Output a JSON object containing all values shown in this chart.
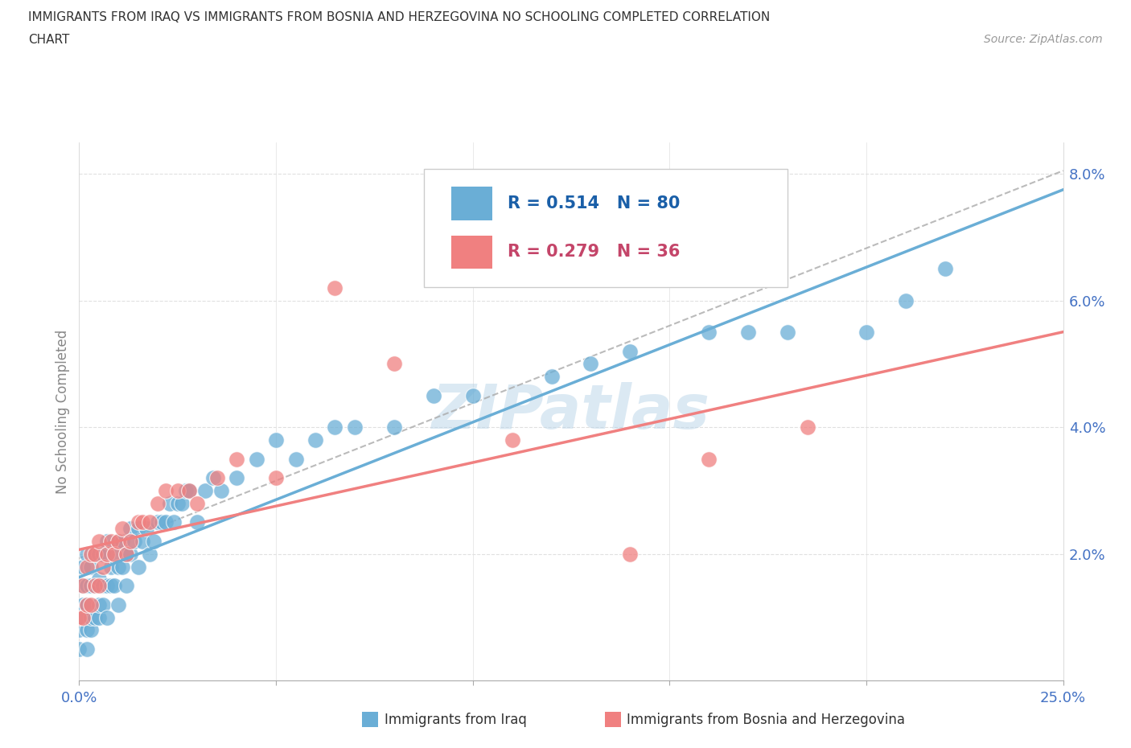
{
  "title_line1": "IMMIGRANTS FROM IRAQ VS IMMIGRANTS FROM BOSNIA AND HERZEGOVINA NO SCHOOLING COMPLETED CORRELATION",
  "title_line2": "CHART",
  "source_text": "Source: ZipAtlas.com",
  "ylabel": "No Schooling Completed",
  "xlim": [
    0.0,
    0.25
  ],
  "ylim": [
    0.0,
    0.085
  ],
  "xticks": [
    0.0,
    0.05,
    0.1,
    0.15,
    0.2,
    0.25
  ],
  "yticks": [
    0.0,
    0.02,
    0.04,
    0.06,
    0.08
  ],
  "xticklabels": [
    "0.0%",
    "",
    "",
    "",
    "",
    "25.0%"
  ],
  "yticklabels": [
    "",
    "2.0%",
    "4.0%",
    "6.0%",
    "8.0%"
  ],
  "color_iraq": "#6AAED6",
  "color_bosnia": "#F08080",
  "R_iraq": 0.514,
  "N_iraq": 80,
  "R_bosnia": 0.279,
  "N_bosnia": 36,
  "watermark": "ZIPatlas",
  "background_color": "#ffffff",
  "grid_color": "#e0e0e0",
  "iraq_x": [
    0.0,
    0.0,
    0.001,
    0.001,
    0.001,
    0.001,
    0.002,
    0.002,
    0.002,
    0.002,
    0.002,
    0.003,
    0.003,
    0.003,
    0.003,
    0.004,
    0.004,
    0.004,
    0.005,
    0.005,
    0.005,
    0.005,
    0.006,
    0.006,
    0.006,
    0.007,
    0.007,
    0.007,
    0.008,
    0.008,
    0.009,
    0.009,
    0.01,
    0.01,
    0.01,
    0.011,
    0.011,
    0.012,
    0.012,
    0.013,
    0.013,
    0.014,
    0.015,
    0.015,
    0.016,
    0.017,
    0.018,
    0.019,
    0.02,
    0.021,
    0.022,
    0.023,
    0.024,
    0.025,
    0.026,
    0.027,
    0.028,
    0.03,
    0.032,
    0.034,
    0.036,
    0.04,
    0.045,
    0.05,
    0.055,
    0.06,
    0.065,
    0.07,
    0.08,
    0.09,
    0.1,
    0.12,
    0.13,
    0.14,
    0.16,
    0.17,
    0.18,
    0.2,
    0.21,
    0.22
  ],
  "iraq_y": [
    0.005,
    0.008,
    0.01,
    0.012,
    0.015,
    0.018,
    0.005,
    0.008,
    0.012,
    0.015,
    0.02,
    0.008,
    0.01,
    0.015,
    0.018,
    0.01,
    0.015,
    0.02,
    0.01,
    0.012,
    0.016,
    0.02,
    0.012,
    0.015,
    0.02,
    0.01,
    0.015,
    0.022,
    0.015,
    0.018,
    0.015,
    0.02,
    0.012,
    0.018,
    0.022,
    0.018,
    0.022,
    0.015,
    0.02,
    0.02,
    0.024,
    0.022,
    0.018,
    0.024,
    0.022,
    0.024,
    0.02,
    0.022,
    0.025,
    0.025,
    0.025,
    0.028,
    0.025,
    0.028,
    0.028,
    0.03,
    0.03,
    0.025,
    0.03,
    0.032,
    0.03,
    0.032,
    0.035,
    0.038,
    0.035,
    0.038,
    0.04,
    0.04,
    0.04,
    0.045,
    0.045,
    0.048,
    0.05,
    0.052,
    0.055,
    0.055,
    0.055,
    0.055,
    0.06,
    0.065
  ],
  "bosnia_x": [
    0.0,
    0.001,
    0.001,
    0.002,
    0.002,
    0.003,
    0.003,
    0.004,
    0.004,
    0.005,
    0.005,
    0.006,
    0.007,
    0.008,
    0.009,
    0.01,
    0.011,
    0.012,
    0.013,
    0.015,
    0.016,
    0.018,
    0.02,
    0.022,
    0.025,
    0.028,
    0.03,
    0.035,
    0.04,
    0.05,
    0.065,
    0.08,
    0.11,
    0.14,
    0.16,
    0.185
  ],
  "bosnia_y": [
    0.01,
    0.01,
    0.015,
    0.012,
    0.018,
    0.012,
    0.02,
    0.015,
    0.02,
    0.015,
    0.022,
    0.018,
    0.02,
    0.022,
    0.02,
    0.022,
    0.024,
    0.02,
    0.022,
    0.025,
    0.025,
    0.025,
    0.028,
    0.03,
    0.03,
    0.03,
    0.028,
    0.032,
    0.035,
    0.032,
    0.062,
    0.05,
    0.038,
    0.02,
    0.035,
    0.04
  ]
}
